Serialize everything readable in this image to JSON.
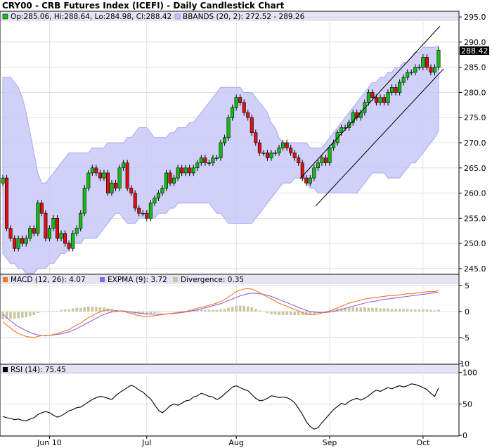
{
  "title": "CRY00 - CRB Futures Index (ICEFI) - Daily Candlestick Chart",
  "colors": {
    "up": "#10c010",
    "down": "#e01010",
    "band_fill": "#c8c8f8",
    "band_line": "#a8a8f0",
    "macd": "#f07820",
    "expma": "#9060f0",
    "divergence": "#c8c8a0",
    "rsi": "#000000",
    "grid": "#cccccc",
    "header_bg": "#e4e4f4"
  },
  "x_labels": [
    {
      "label": "Jun 10",
      "i": 12
    },
    {
      "label": "Jul",
      "i": 37
    },
    {
      "label": "Aug",
      "i": 60
    },
    {
      "label": "Sep",
      "i": 84
    },
    {
      "label": "Oct",
      "i": 108
    }
  ],
  "price_panel": {
    "legend_ohlc": "Op:285.06, Hi:288.64, Lo:284.98, Cl:288.42",
    "legend_bbands": "BBANDS (20, 2): 272.52 - 289.26",
    "last_label": "288.42",
    "ticks": [
      245,
      250,
      255,
      260,
      265,
      270,
      275,
      280,
      285,
      290,
      295
    ],
    "ylim": [
      244,
      296
    ]
  },
  "macd_panel": {
    "legend_macd": "MACD (12, 26): 4.07",
    "legend_expma": "EXPMA (9): 3.72",
    "legend_div": "Divergence: 0.35",
    "ticks": [
      -10,
      -5,
      0,
      5
    ],
    "ylim": [
      -10,
      7
    ]
  },
  "rsi_panel": {
    "legend_rsi": "RSI (14): 75.45",
    "ticks": [
      0,
      50,
      100
    ],
    "ylim": [
      0,
      112
    ]
  },
  "chart_data": {
    "type": "candlestick",
    "title": "CRY00 - CRB Futures Index (ICEFI) - Daily Candlestick Chart",
    "x_axis_labels": [
      "Jun 10",
      "Jul",
      "Aug",
      "Sep",
      "Oct"
    ],
    "closes": [
      263,
      253,
      251,
      249,
      251,
      250,
      251,
      253,
      252,
      258,
      256,
      251,
      253,
      255,
      251,
      252,
      250,
      249,
      252,
      253,
      256,
      261,
      264,
      265,
      264,
      263,
      264,
      260,
      262,
      261,
      265,
      266,
      261,
      260,
      257,
      256,
      256,
      255,
      258,
      259,
      260,
      261,
      264,
      262,
      263,
      265,
      264,
      265,
      264,
      265,
      266,
      267,
      266,
      266,
      267,
      267,
      270,
      271,
      275,
      277,
      279,
      278,
      276,
      275,
      272,
      270,
      268,
      268,
      267,
      268,
      268,
      269,
      270,
      269,
      268,
      267,
      266,
      263,
      262,
      263,
      265,
      266,
      267,
      266,
      269,
      270,
      272,
      273,
      273,
      274,
      276,
      275,
      276,
      278,
      280,
      279,
      278,
      279,
      278,
      280,
      281,
      280,
      282,
      283,
      284,
      284,
      285,
      285,
      287,
      285,
      284,
      285,
      288.42
    ],
    "bband_upper": [
      283,
      283,
      283,
      282,
      281,
      279,
      276,
      272,
      268,
      264,
      262,
      262,
      263,
      264,
      265,
      266,
      267,
      268,
      268,
      268,
      268,
      268,
      268,
      269,
      269,
      269,
      269,
      270,
      270,
      270,
      270,
      270,
      271,
      271,
      272,
      273,
      273,
      273,
      272,
      271,
      271,
      271,
      271,
      272,
      272,
      273,
      273,
      273,
      274,
      274,
      275,
      276,
      277,
      278,
      279,
      280,
      281,
      281,
      281,
      281,
      281,
      281,
      280,
      280,
      280,
      279,
      278,
      277,
      276,
      274,
      273,
      271,
      270,
      270,
      270,
      270,
      270,
      270,
      270,
      269,
      269,
      269,
      269,
      270,
      271,
      272,
      273,
      274,
      275,
      276,
      277,
      278,
      279,
      280,
      281,
      282,
      282,
      283,
      283,
      284,
      284,
      285,
      285,
      286,
      286,
      287,
      288,
      288,
      289,
      289,
      289,
      289,
      289.26
    ],
    "bband_lower": [
      248,
      247,
      246,
      246,
      245,
      245,
      244,
      244,
      244,
      245,
      245,
      245,
      246,
      246,
      247,
      248,
      248,
      249,
      250,
      250,
      250,
      251,
      251,
      251,
      251,
      252,
      253,
      254,
      255,
      256,
      256,
      255,
      254,
      254,
      254,
      255,
      255,
      255,
      255,
      255,
      256,
      256,
      256,
      257,
      257,
      258,
      258,
      258,
      258,
      258,
      258,
      258,
      258,
      258,
      257,
      256,
      256,
      255,
      254,
      254,
      254,
      254,
      254,
      254,
      254,
      255,
      256,
      257,
      258,
      259,
      260,
      261,
      262,
      262,
      262,
      263,
      263,
      263,
      262,
      261,
      261,
      260,
      260,
      260,
      260,
      260,
      260,
      260,
      260,
      260,
      260,
      260,
      261,
      262,
      263,
      264,
      264,
      264,
      264,
      263,
      263,
      263,
      263,
      264,
      265,
      266,
      266,
      267,
      268,
      269,
      270,
      271,
      272.52
    ],
    "macd": [
      -2.0,
      -2.6,
      -3.2,
      -3.8,
      -4.2,
      -4.5,
      -4.8,
      -4.9,
      -5.0,
      -4.8,
      -4.6,
      -4.7,
      -4.6,
      -4.4,
      -4.3,
      -4.0,
      -3.7,
      -3.5,
      -3.0,
      -2.6,
      -2.2,
      -1.7,
      -1.2,
      -0.8,
      -0.4,
      -0.1,
      0.2,
      0.3,
      0.3,
      0.2,
      0.1,
      0.0,
      -0.2,
      -0.4,
      -0.6,
      -0.8,
      -0.9,
      -1.0,
      -0.9,
      -0.8,
      -0.7,
      -0.6,
      -0.5,
      -0.4,
      -0.3,
      -0.2,
      -0.1,
      0.0,
      0.2,
      0.4,
      0.6,
      0.8,
      1.0,
      1.2,
      1.4,
      1.6,
      1.9,
      2.3,
      2.8,
      3.3,
      3.8,
      4.1,
      4.3,
      4.4,
      4.3,
      4.0,
      3.6,
      3.2,
      2.8,
      2.4,
      2.0,
      1.6,
      1.3,
      1.0,
      0.7,
      0.4,
      0.1,
      -0.2,
      -0.5,
      -0.6,
      -0.6,
      -0.5,
      -0.3,
      -0.1,
      0.1,
      0.4,
      0.7,
      1.0,
      1.3,
      1.6,
      1.8,
      2.0,
      2.2,
      2.4,
      2.5,
      2.6,
      2.7,
      2.8,
      2.9,
      3.0,
      3.0,
      3.1,
      3.2,
      3.3,
      3.4,
      3.4,
      3.5,
      3.6,
      3.7,
      3.8,
      3.8,
      3.8,
      4.07
    ],
    "expma": [
      -0.5,
      -1.2,
      -1.8,
      -2.4,
      -2.9,
      -3.3,
      -3.7,
      -4.0,
      -4.3,
      -4.5,
      -4.6,
      -4.6,
      -4.6,
      -4.5,
      -4.4,
      -4.3,
      -4.1,
      -3.9,
      -3.6,
      -3.3,
      -2.9,
      -2.5,
      -2.1,
      -1.7,
      -1.3,
      -0.9,
      -0.6,
      -0.3,
      -0.1,
      0.0,
      0.1,
      0.1,
      0.0,
      -0.1,
      -0.2,
      -0.3,
      -0.4,
      -0.5,
      -0.5,
      -0.5,
      -0.5,
      -0.5,
      -0.5,
      -0.4,
      -0.4,
      -0.3,
      -0.2,
      -0.1,
      0.0,
      0.2,
      0.3,
      0.5,
      0.7,
      0.9,
      1.1,
      1.3,
      1.5,
      1.8,
      2.1,
      2.4,
      2.7,
      3.0,
      3.2,
      3.4,
      3.5,
      3.5,
      3.4,
      3.3,
      3.1,
      2.9,
      2.6,
      2.3,
      2.0,
      1.7,
      1.4,
      1.1,
      0.8,
      0.5,
      0.2,
      0.0,
      -0.1,
      -0.2,
      -0.2,
      -0.2,
      -0.1,
      0.0,
      0.2,
      0.4,
      0.6,
      0.8,
      1.0,
      1.2,
      1.4,
      1.6,
      1.8,
      1.9,
      2.0,
      2.2,
      2.3,
      2.4,
      2.5,
      2.6,
      2.7,
      2.8,
      2.9,
      3.0,
      3.1,
      3.2,
      3.3,
      3.4,
      3.5,
      3.6,
      3.72
    ],
    "rsi": [
      30,
      28,
      27,
      25,
      26,
      24,
      23,
      26,
      28,
      33,
      36,
      38,
      36,
      32,
      29,
      31,
      35,
      39,
      41,
      44,
      45,
      49,
      53,
      57,
      60,
      62,
      61,
      59,
      57,
      63,
      68,
      72,
      76,
      80,
      77,
      72,
      69,
      63,
      58,
      49,
      40,
      36,
      41,
      47,
      50,
      48,
      51,
      55,
      56,
      61,
      63,
      67,
      65,
      62,
      61,
      57,
      60,
      66,
      71,
      77,
      79,
      76,
      73,
      71,
      65,
      59,
      55,
      56,
      59,
      63,
      62,
      60,
      61,
      60,
      57,
      52,
      43,
      33,
      22,
      14,
      10,
      12,
      20,
      27,
      34,
      41,
      46,
      51,
      49,
      54,
      57,
      59,
      56,
      59,
      63,
      68,
      72,
      70,
      73,
      76,
      74,
      77,
      79,
      77,
      79,
      82,
      81,
      79,
      76,
      73,
      67,
      62,
      75.45
    ]
  }
}
